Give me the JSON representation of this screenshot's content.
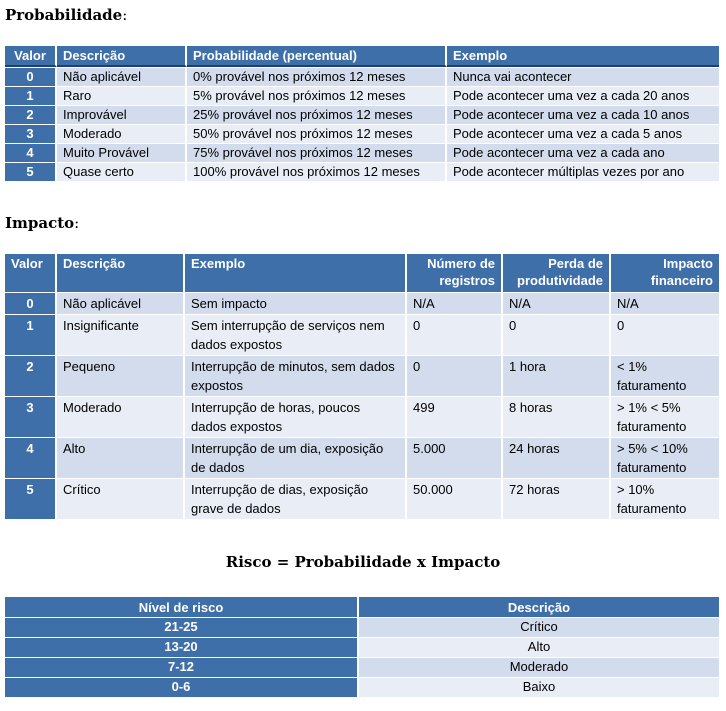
{
  "probability": {
    "heading": "Probabilidade",
    "headers": [
      "Valor",
      "Descrição",
      "Probabilidade  (percentual)",
      "Exemplo"
    ],
    "rows": [
      [
        "0",
        "Não aplicável",
        "0% provável nos próximos 12 meses",
        "Nunca vai acontecer"
      ],
      [
        "1",
        "Raro",
        "5% provável nos próximos 12 meses",
        "Pode acontecer uma vez a cada 20 anos"
      ],
      [
        "2",
        "Improvável",
        "25% provável nos próximos 12 meses",
        "Pode acontecer uma vez a cada 10 anos"
      ],
      [
        "3",
        "Moderado",
        "50% provável nos próximos 12 meses",
        "Pode acontecer uma vez a cada 5 anos"
      ],
      [
        "4",
        "Muito Provável",
        "75% provável nos próximos 12 meses",
        "Pode acontecer uma vez a cada ano"
      ],
      [
        "5",
        "Quase certo",
        "100% provável nos próximos 12 meses",
        "Pode acontecer múltiplas vezes por ano"
      ]
    ]
  },
  "impact": {
    "heading": "Impacto",
    "headers": [
      "Valor",
      "Descrição",
      "Exemplo",
      "Número de registros",
      "Perda de produtividade",
      "Impacto financeiro"
    ],
    "rows": [
      [
        "0",
        "Não aplicável",
        "Sem impacto",
        "N/A",
        "N/A",
        "N/A"
      ],
      [
        "1",
        "Insignificante",
        "Sem interrupção de serviços nem dados expostos",
        "0",
        "0",
        "0"
      ],
      [
        "2",
        "Pequeno",
        "Interrupção de minutos, sem dados expostos",
        "0",
        "1 hora",
        "< 1% faturamento"
      ],
      [
        "3",
        "Moderado",
        "Interrupção de horas, poucos dados expostos",
        "499",
        "8 horas",
        "> 1% < 5% faturamento"
      ],
      [
        "4",
        "Alto",
        "Interrupção de um dia, exposição de dados",
        "5.000",
        "24 horas",
        "> 5% < 10% faturamento"
      ],
      [
        "5",
        "Crítico",
        "Interrupção de dias, exposição grave de dados",
        "50.000",
        "72 horas",
        "> 10% faturamento"
      ]
    ]
  },
  "risk": {
    "title": "Risco = Probabilidade x Impacto",
    "headers": [
      "Nível de risco",
      "Descrição"
    ],
    "rows": [
      [
        "21-25",
        "Crítico"
      ],
      [
        "13-20",
        "Alto"
      ],
      [
        "7-12",
        "Moderado"
      ],
      [
        "0-6",
        "Baixo"
      ]
    ]
  },
  "colors": {
    "header_blue": "#3f6fa8",
    "row_dark": "#d3dcec",
    "row_light": "#e9eef6"
  }
}
